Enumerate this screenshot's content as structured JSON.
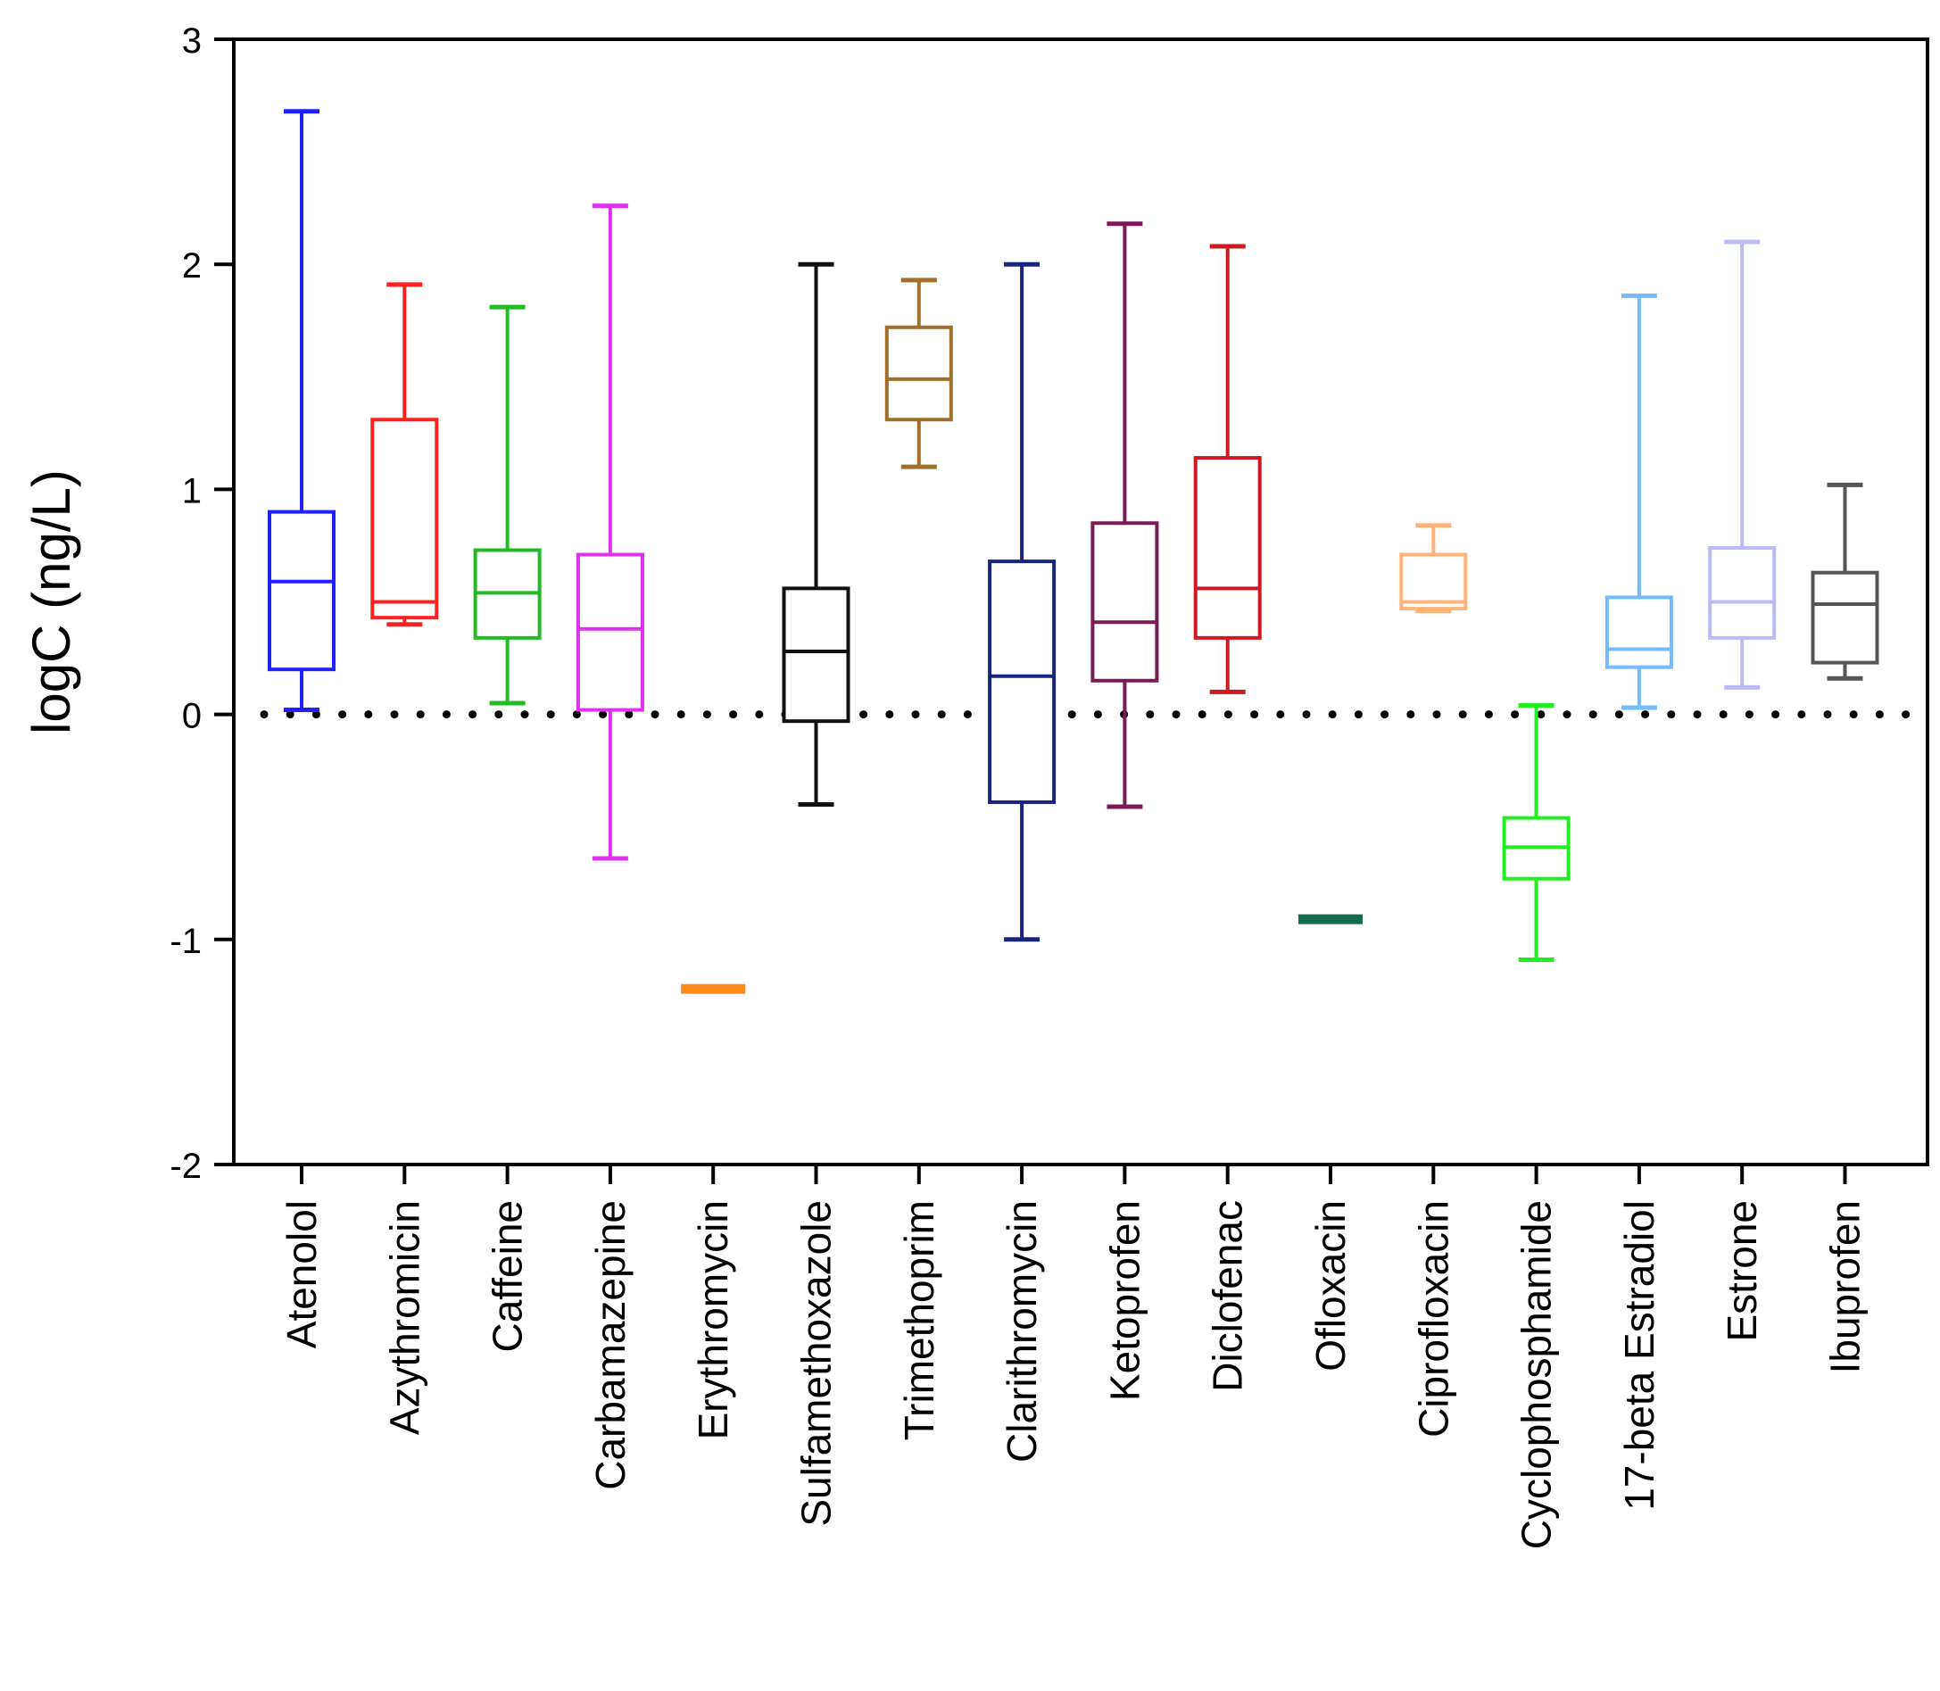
{
  "chart_data": {
    "type": "boxplot",
    "title": "",
    "xlabel": "",
    "ylabel": "logC (ng/L)",
    "ylim": [
      -2,
      3
    ],
    "yticks": [
      3,
      2,
      1,
      0,
      -1,
      -2
    ],
    "ytick_labels": [
      "3",
      "2",
      "1",
      "0",
      "-1",
      "-2"
    ],
    "reference_line": {
      "y": 0,
      "style": "dotted",
      "color": "#000000"
    },
    "boxes": [
      {
        "name": "Atenolol",
        "color": "#1f1fff",
        "min": 0.02,
        "q1": 0.2,
        "median": 0.59,
        "q3": 0.9,
        "max": 2.68
      },
      {
        "name": "Azythromicin",
        "color": "#ff2020",
        "min": 0.4,
        "q1": 0.43,
        "median": 0.5,
        "q3": 1.31,
        "max": 1.91
      },
      {
        "name": "Caffeine",
        "color": "#22bb22",
        "min": 0.05,
        "q1": 0.34,
        "median": 0.54,
        "q3": 0.73,
        "max": 1.81
      },
      {
        "name": "Carbamazepine",
        "color": "#dd33ee",
        "min": -0.64,
        "q1": 0.02,
        "median": 0.38,
        "q3": 0.71,
        "max": 2.26
      },
      {
        "name": "Erythromycin",
        "color": "#ff8c1a",
        "min": -1.22,
        "q1": -1.22,
        "median": -1.22,
        "q3": -1.22,
        "max": -1.22
      },
      {
        "name": "Sulfamethoxazole",
        "color": "#111111",
        "min": -0.4,
        "q1": -0.03,
        "median": 0.28,
        "q3": 0.56,
        "max": 2.0
      },
      {
        "name": "Trimethoprim",
        "color": "#a0702a",
        "min": 1.1,
        "q1": 1.31,
        "median": 1.49,
        "q3": 1.72,
        "max": 1.93
      },
      {
        "name": "Clarithromycin",
        "color": "#1a237e",
        "min": -1.0,
        "q1": -0.39,
        "median": 0.17,
        "q3": 0.68,
        "max": 2.0
      },
      {
        "name": "Ketoprofen",
        "color": "#7b1a55",
        "min": -0.41,
        "q1": 0.15,
        "median": 0.41,
        "q3": 0.85,
        "max": 2.18
      },
      {
        "name": "Diclofenac",
        "color": "#cc1a22",
        "min": 0.1,
        "q1": 0.34,
        "median": 0.56,
        "q3": 1.14,
        "max": 2.08
      },
      {
        "name": "Ofloxacin",
        "color": "#146b4e",
        "min": -0.91,
        "q1": -0.91,
        "median": -0.91,
        "q3": -0.91,
        "max": -0.91
      },
      {
        "name": "Ciprofloxacin",
        "color": "#ffb27a",
        "min": 0.46,
        "q1": 0.47,
        "median": 0.5,
        "q3": 0.71,
        "max": 0.84
      },
      {
        "name": "Cyclophosphamide",
        "color": "#22ee22",
        "min": -1.09,
        "q1": -0.73,
        "median": -0.59,
        "q3": -0.46,
        "max": 0.04
      },
      {
        "name": "17-beta Estradiol",
        "color": "#77bbff",
        "min": 0.03,
        "q1": 0.21,
        "median": 0.29,
        "q3": 0.52,
        "max": 1.86
      },
      {
        "name": "Estrone",
        "color": "#bbbbf5",
        "min": 0.12,
        "q1": 0.34,
        "median": 0.5,
        "q3": 0.74,
        "max": 2.1
      },
      {
        "name": "Ibuprofen",
        "color": "#555555",
        "min": 0.16,
        "q1": 0.23,
        "median": 0.49,
        "q3": 0.63,
        "max": 1.02
      }
    ]
  }
}
